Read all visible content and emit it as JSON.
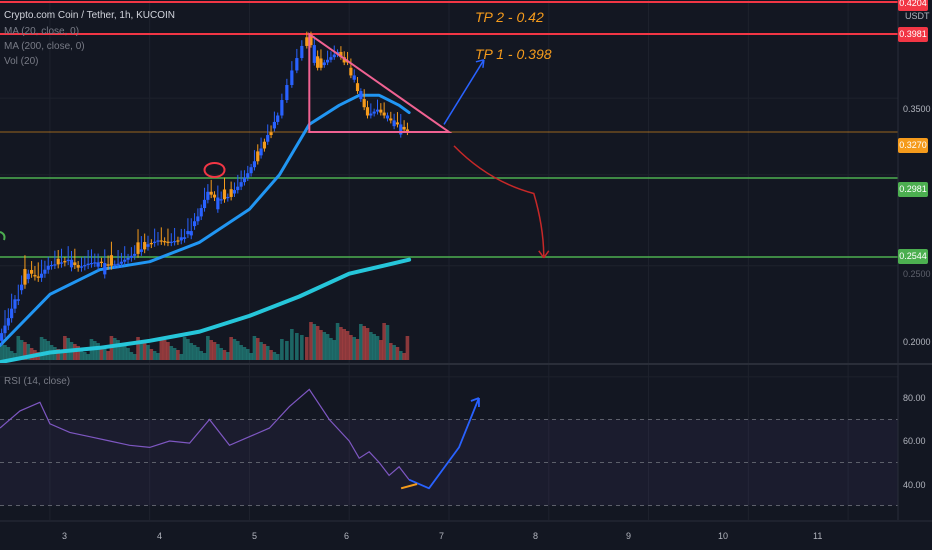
{
  "header": {
    "title": "Crypto.com Coin / Tether, 1h, KUCOIN",
    "ma20": "MA (20, close, 0)",
    "ma200": "MA (200, close, 0)",
    "vol": "Vol (20)",
    "rsi": "RSI (14, close)"
  },
  "annotations": {
    "tp2": "TP 2 -  0.42",
    "tp1": "TP 1 - 0.398"
  },
  "axis": {
    "currency": "USDT",
    "price_ticks": [
      "0.3500",
      "0.2500",
      "0.2000"
    ],
    "price_labels": [
      {
        "text": "0.4204",
        "color": "#f23645"
      },
      {
        "text": "0.3981",
        "color": "#f23645"
      },
      {
        "text": "0.3270",
        "color": "#f59b1c"
      },
      {
        "text": "0.2981",
        "color": "#4caf50"
      },
      {
        "text": "0.2544",
        "color": "#4caf50"
      }
    ],
    "rsi_ticks": [
      "80.00",
      "60.00",
      "40.00"
    ],
    "x_ticks": [
      "3",
      "4",
      "5",
      "6",
      "7",
      "8",
      "9",
      "10",
      "11"
    ]
  },
  "colors": {
    "up": "#2962ff",
    "down": "#f59b1c",
    "ma20": "#2196f3",
    "ma200": "#26c6da",
    "resistance": "#f23645",
    "support": "#4caf50",
    "triangle": "#f06292",
    "rsi": "#7e57c2"
  },
  "chart_data": [
    {
      "type": "candlestick",
      "title": "Crypto.com Coin / Tether, 1h, KUCOIN",
      "ylabel": "USDT",
      "x_range": [
        2.5,
        11.5
      ],
      "y_range": [
        0.193,
        0.422
      ],
      "scale": "log",
      "candles": [
        [
          2.5,
          0.215
        ],
        [
          2.6,
          0.225
        ],
        [
          2.7,
          0.238
        ],
        [
          2.8,
          0.246
        ],
        [
          2.9,
          0.244
        ],
        [
          3.0,
          0.25
        ],
        [
          3.1,
          0.251
        ],
        [
          3.2,
          0.253
        ],
        [
          3.3,
          0.249
        ],
        [
          3.4,
          0.251
        ],
        [
          3.5,
          0.252
        ],
        [
          3.6,
          0.25
        ],
        [
          3.7,
          0.251
        ],
        [
          3.8,
          0.254
        ],
        [
          3.9,
          0.257
        ],
        [
          4.0,
          0.261
        ],
        [
          4.1,
          0.263
        ],
        [
          4.2,
          0.262
        ],
        [
          4.3,
          0.263
        ],
        [
          4.4,
          0.268
        ],
        [
          4.5,
          0.276
        ],
        [
          4.6,
          0.29
        ],
        [
          4.7,
          0.285
        ],
        [
          4.8,
          0.287
        ],
        [
          4.9,
          0.293
        ],
        [
          5.0,
          0.301
        ],
        [
          5.1,
          0.312
        ],
        [
          5.2,
          0.325
        ],
        [
          5.3,
          0.338
        ],
        [
          5.45,
          0.37
        ],
        [
          5.6,
          0.398
        ],
        [
          5.7,
          0.372
        ],
        [
          5.8,
          0.378
        ],
        [
          5.9,
          0.384
        ],
        [
          6.0,
          0.372
        ],
        [
          6.1,
          0.355
        ],
        [
          6.2,
          0.338
        ],
        [
          6.3,
          0.342
        ],
        [
          6.4,
          0.336
        ],
        [
          6.5,
          0.332
        ],
        [
          6.6,
          0.327
        ]
      ],
      "ma20": [
        [
          2.5,
          0.213
        ],
        [
          3.0,
          0.236
        ],
        [
          3.5,
          0.248
        ],
        [
          4.0,
          0.252
        ],
        [
          4.5,
          0.262
        ],
        [
          5.0,
          0.28
        ],
        [
          5.3,
          0.3
        ],
        [
          5.6,
          0.332
        ],
        [
          5.9,
          0.345
        ],
        [
          6.1,
          0.352
        ],
        [
          6.3,
          0.352
        ],
        [
          6.5,
          0.345
        ],
        [
          6.6,
          0.34
        ]
      ],
      "ma200": [
        [
          2.5,
          0.206
        ],
        [
          3.0,
          0.21
        ],
        [
          3.5,
          0.212
        ],
        [
          4.0,
          0.215
        ],
        [
          4.5,
          0.219
        ],
        [
          5.0,
          0.226
        ],
        [
          5.5,
          0.235
        ],
        [
          6.0,
          0.246
        ],
        [
          6.6,
          0.253
        ]
      ],
      "levels": {
        "resistance": [
          0.4204,
          0.3981
        ],
        "current": 0.327,
        "support": [
          0.2981,
          0.2544
        ]
      },
      "targets": {
        "tp1": 0.398,
        "tp2": 0.42
      }
    },
    {
      "type": "line",
      "title": "RSI (14, close)",
      "y_range": [
        28,
        92
      ],
      "bands": [
        70,
        50,
        30
      ],
      "x": [
        2.5,
        2.7,
        2.9,
        3.0,
        3.2,
        3.4,
        3.6,
        3.8,
        4.0,
        4.2,
        4.4,
        4.6,
        4.8,
        5.0,
        5.2,
        5.4,
        5.6,
        5.8,
        6.0,
        6.1,
        6.2,
        6.3,
        6.4,
        6.5,
        6.6
      ],
      "values": [
        66,
        74,
        78,
        68,
        64,
        62,
        60,
        58,
        57,
        60,
        59,
        70,
        58,
        62,
        66,
        76,
        84,
        70,
        60,
        52,
        55,
        50,
        44,
        48,
        42
      ],
      "projection": [
        [
          6.8,
          38
        ],
        [
          7.1,
          57
        ],
        [
          7.3,
          80
        ]
      ]
    }
  ]
}
